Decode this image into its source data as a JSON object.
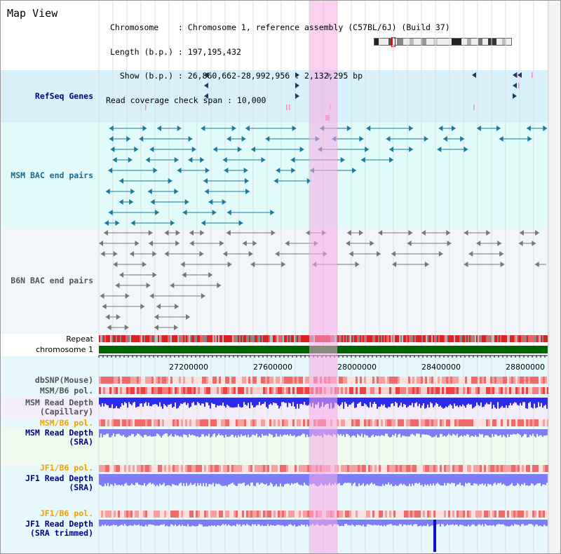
{
  "title": "Map View",
  "info": {
    "chromosome_line": "Chromosome    : Chromosome 1, reference assembly (C57BL/6J) (Build 37)",
    "length_line": "Length (b.p.) : 197,195,432",
    "show_line": "  Show (b.p.) : 26,860,662-28,992,956 : 2,132,295 bp",
    "coverage_line": "Read coverage check span : 10,000"
  },
  "tracks": {
    "refseq": "RefSeq Genes",
    "msm_bac": "MSM BAC end pairs",
    "b6n_bac": "B6N BAC end pairs",
    "repeat": "Repeat",
    "chromosome": "chromosome 1",
    "dbsnp": "dbSNP(Mouse)",
    "msm_b6_pol_1": "MSM/B6 pol.",
    "msm_read_depth_cap_1": "MSM Read Depth",
    "msm_read_depth_cap_2": "(Capillary)",
    "msm_b6_pol_2": "MSM/B6 pol.",
    "msm_read_depth_sra_1": "MSM Read Depth",
    "msm_read_depth_sra_2": "(SRA)",
    "jf1_b6_pol_1": "JF1/B6 pol.",
    "jf1_read_depth_sra_1": "JF1 Read Depth",
    "jf1_read_depth_sra_2": "(SRA)",
    "jf1_b6_pol_2": "JF1/B6 pol.",
    "jf1_read_depth_trim_1": "JF1 Read Depth",
    "jf1_read_depth_trim_2": "(SRA trimmed)"
  },
  "axis_ticks": [
    "27200000",
    "27600000",
    "28000000",
    "28400000",
    "28800000"
  ],
  "colors": {
    "refseq_bg": "#d7f0fa",
    "msm_bg": "#e1fafa",
    "b6n_bg": "#f2f6fb",
    "highlight": "#f7c6ef",
    "label_navy": "#00008b",
    "label_orange": "#f5a000",
    "label_gray": "#555555",
    "chromosome_bar": "#006400",
    "msm_feature": "#1a7a9a",
    "b6n_feature": "#777777",
    "depth_blue": "#2b2bf0",
    "depth_light": "#7d7df5"
  }
}
